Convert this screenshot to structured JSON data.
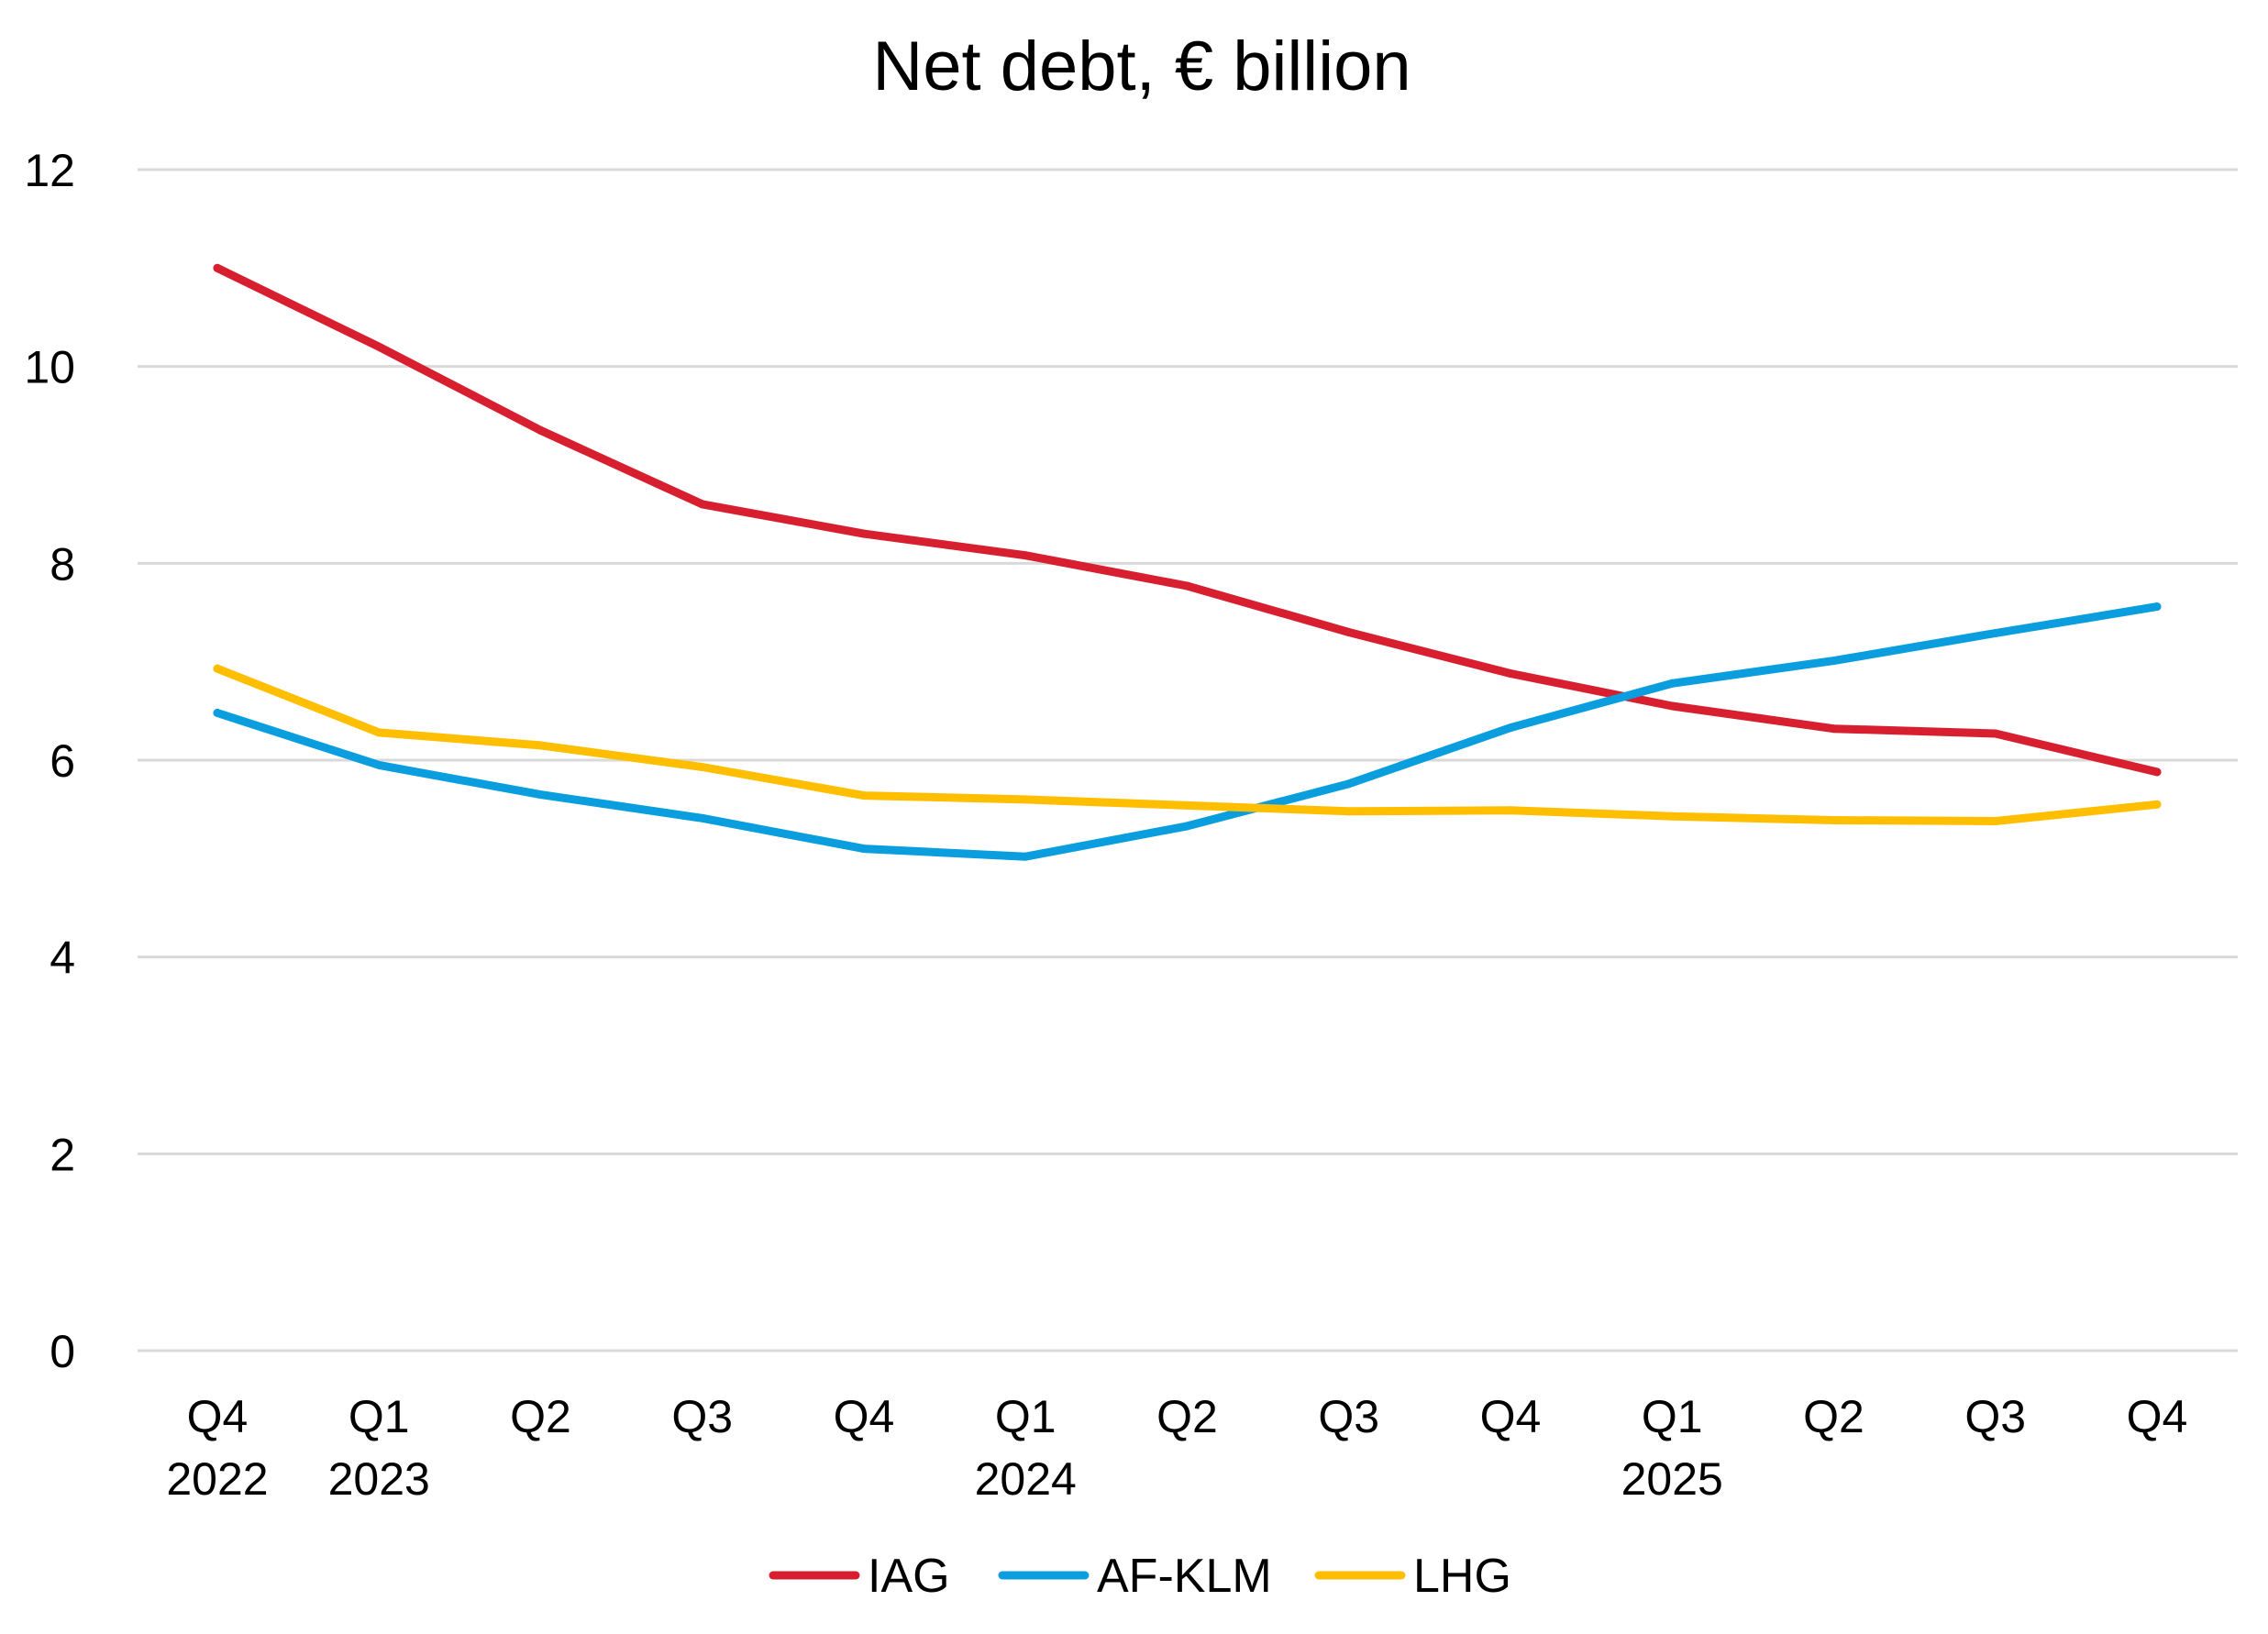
{
  "chart_data": {
    "type": "line",
    "title": "Net debt, € billion",
    "xlabel": "",
    "ylabel": "",
    "ylim": [
      0,
      12
    ],
    "yticks": [
      0,
      2,
      4,
      6,
      8,
      10,
      12
    ],
    "grid": true,
    "legend_position": "bottom",
    "categories": [
      {
        "quarter": "Q4",
        "year": "2022"
      },
      {
        "quarter": "Q1",
        "year": "2023"
      },
      {
        "quarter": "Q2",
        "year": ""
      },
      {
        "quarter": "Q3",
        "year": ""
      },
      {
        "quarter": "Q4",
        "year": ""
      },
      {
        "quarter": "Q1",
        "year": "2024"
      },
      {
        "quarter": "Q2",
        "year": ""
      },
      {
        "quarter": "Q3",
        "year": ""
      },
      {
        "quarter": "Q4",
        "year": ""
      },
      {
        "quarter": "Q1",
        "year": "2025"
      },
      {
        "quarter": "Q2",
        "year": ""
      },
      {
        "quarter": "Q3",
        "year": ""
      },
      {
        "quarter": "Q4",
        "year": ""
      }
    ],
    "series": [
      {
        "name": "IAG",
        "color": "#d71f30",
        "values": [
          11.0,
          10.2,
          9.35,
          8.6,
          8.3,
          8.08,
          7.77,
          7.3,
          6.88,
          6.55,
          6.32,
          6.27,
          5.88
        ]
      },
      {
        "name": "AF-KLM",
        "color": "#0a9ede",
        "values": [
          6.48,
          5.95,
          5.65,
          5.41,
          5.1,
          5.02,
          5.33,
          5.76,
          6.33,
          6.78,
          7.01,
          7.29,
          7.56
        ]
      },
      {
        "name": "LHG",
        "color": "#ffbf00",
        "values": [
          6.93,
          6.28,
          6.15,
          5.93,
          5.64,
          5.6,
          5.54,
          5.48,
          5.49,
          5.43,
          5.39,
          5.38,
          5.55
        ]
      }
    ]
  }
}
